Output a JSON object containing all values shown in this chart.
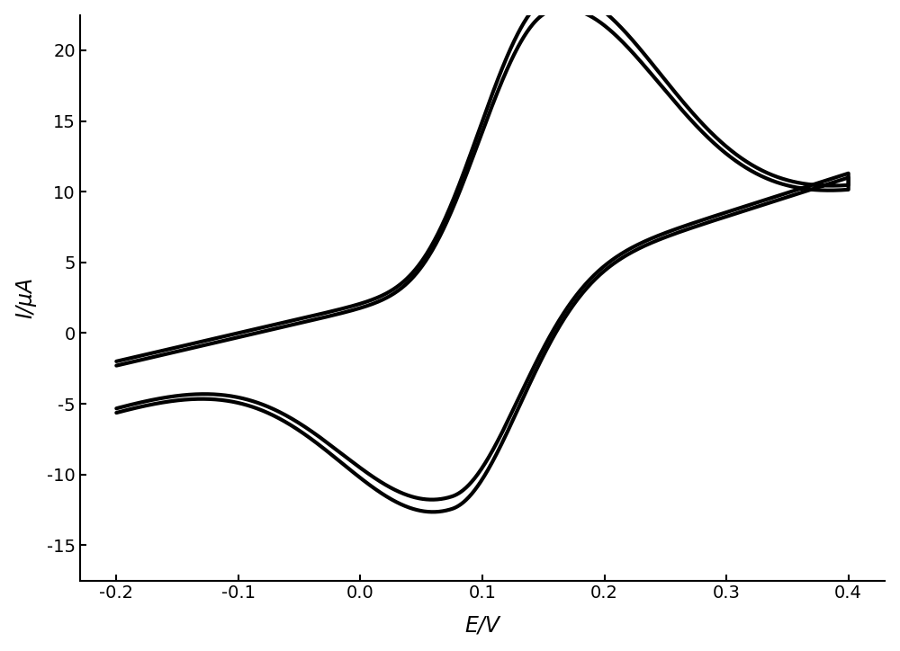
{
  "title": "",
  "xlabel": "E/V",
  "ylabel": "I/μA",
  "xlim": [
    -0.23,
    0.43
  ],
  "ylim": [
    -17.5,
    22.5
  ],
  "xticks": [
    -0.2,
    -0.1,
    0.0,
    0.1,
    0.2,
    0.3,
    0.4
  ],
  "yticks": [
    -15,
    -10,
    -5,
    0,
    5,
    10,
    15,
    20
  ],
  "line_color": "#000000",
  "line_width": 3.0,
  "background_color": "#ffffff",
  "axis_linewidth": 1.5,
  "tick_fontsize": 14,
  "label_fontsize": 17
}
